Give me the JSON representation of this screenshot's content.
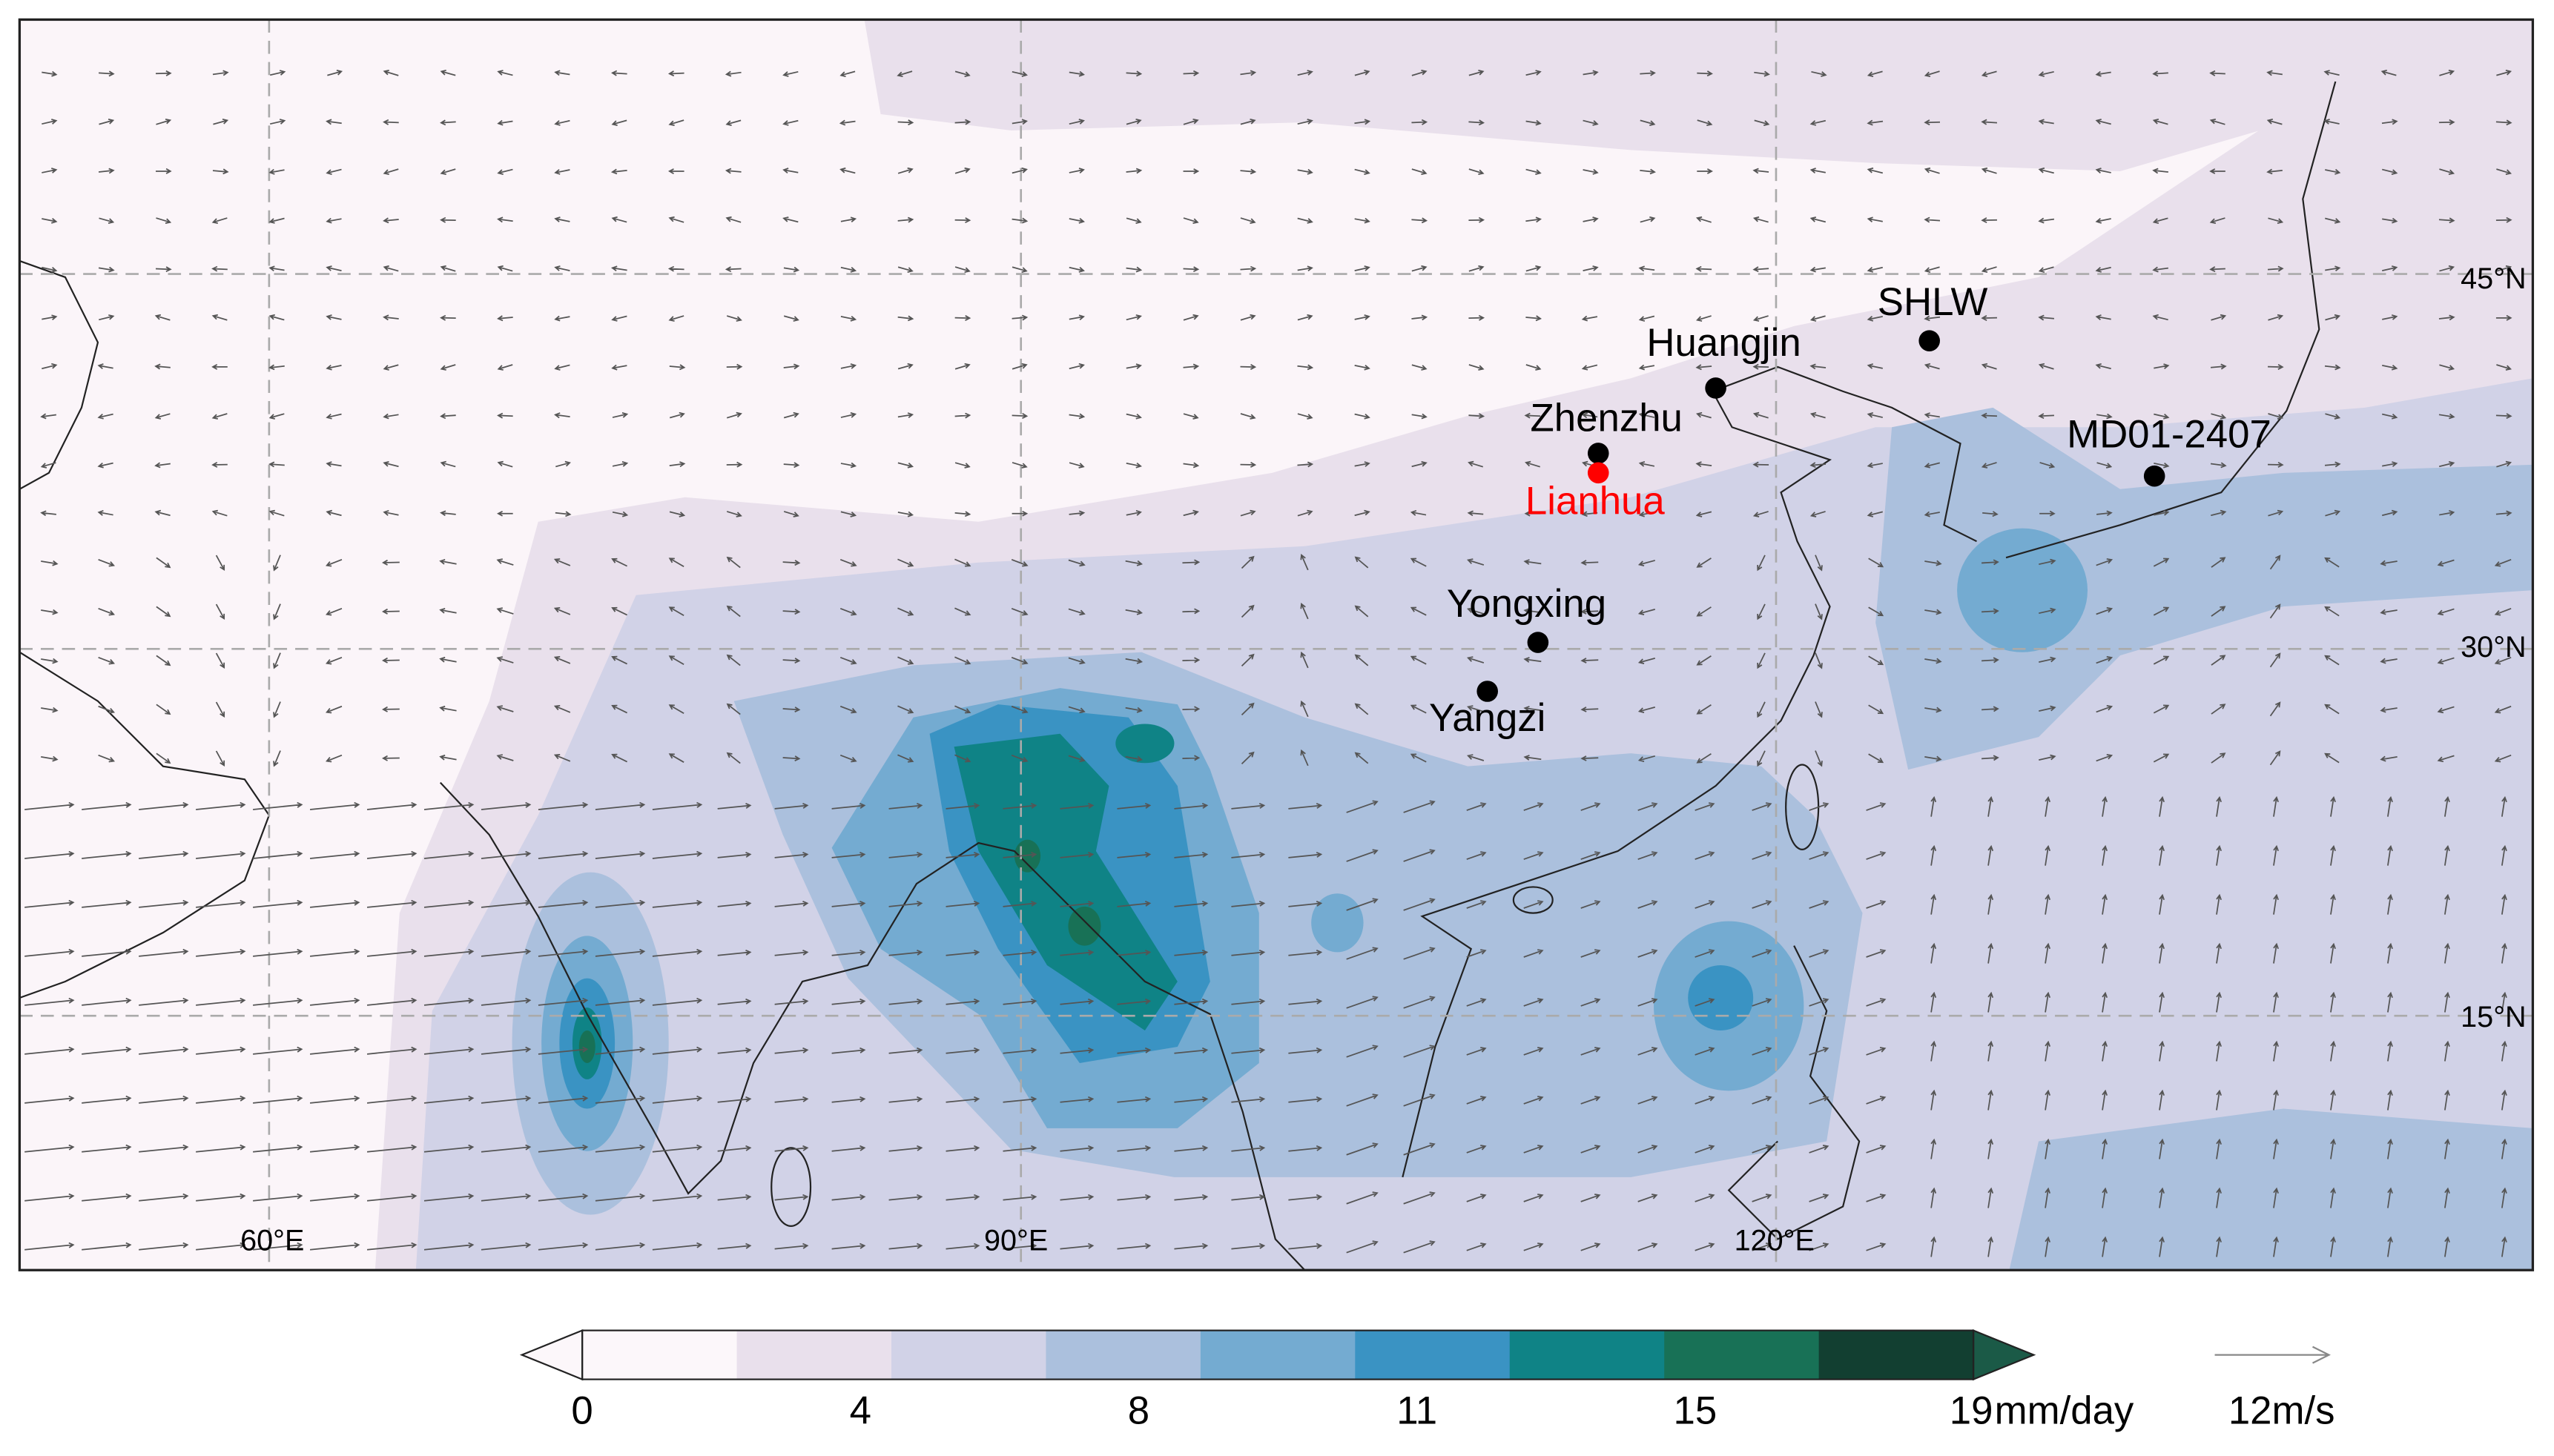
{
  "map": {
    "longitude_labels": [
      "60°E",
      "90°E",
      "120°E"
    ],
    "latitude_labels": [
      "45°N",
      "30°N",
      "15°N"
    ],
    "sites": [
      {
        "name": "SHLW",
        "color": "#000000"
      },
      {
        "name": "Huangjin",
        "color": "#000000"
      },
      {
        "name": "Zhenzhu",
        "color": "#000000"
      },
      {
        "name": "Lianhua",
        "color": "#ff0000"
      },
      {
        "name": "MD01-2407",
        "color": "#000000"
      },
      {
        "name": "Yongxing",
        "color": "#000000"
      },
      {
        "name": "Yangzi",
        "color": "#000000"
      }
    ],
    "colorbar": {
      "ticks": [
        0,
        4,
        8,
        11,
        15,
        19
      ],
      "unit": "mm/day",
      "colors": [
        "#fcf7fa",
        "#e9e0ec",
        "#d1d2e7",
        "#abc0dd",
        "#74abd1",
        "#3a93c3",
        "#0f8386",
        "#187156",
        "#123f31"
      ]
    },
    "reference_vector": {
      "value": 12,
      "unit": "m/s"
    }
  }
}
